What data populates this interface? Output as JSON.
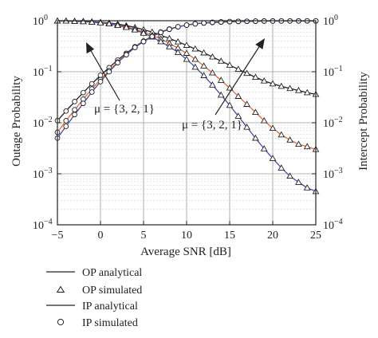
{
  "chart_data": {
    "type": "line",
    "title": "",
    "xlabel": "Average SNR [dB]",
    "ylabel_left": "Outage Probability",
    "ylabel_right": "Intercept Probability",
    "xlim": [
      -5,
      25
    ],
    "ylim": [
      0.0001,
      1
    ],
    "yscale": "log",
    "grid": true,
    "x_ticks": [
      -5,
      0,
      5,
      10,
      15,
      20,
      25
    ],
    "x_tick_labels": [
      "−5",
      "0",
      "5",
      "10",
      "15",
      "20",
      "25"
    ],
    "y_ticks": [
      {
        "value": 1,
        "base": "10",
        "exp": "0"
      },
      {
        "value": 0.1,
        "base": "10",
        "exp": "−1"
      },
      {
        "value": 0.01,
        "base": "10",
        "exp": "−2"
      },
      {
        "value": 0.001,
        "base": "10",
        "exp": "−3"
      },
      {
        "value": 0.0001,
        "base": "10",
        "exp": "−4"
      }
    ],
    "x": [
      -5,
      -4,
      -3,
      -2,
      -1,
      0,
      1,
      2,
      3,
      4,
      5,
      6,
      7,
      8,
      9,
      10,
      11,
      12,
      13,
      14,
      15,
      16,
      17,
      18,
      19,
      20,
      21,
      22,
      23,
      24,
      25
    ],
    "series": [
      {
        "group": "OP",
        "color": "#222222",
        "values": [
          0.99,
          0.985,
          0.98,
          0.97,
          0.955,
          0.935,
          0.9,
          0.86,
          0.8,
          0.74,
          0.67,
          0.6,
          0.52,
          0.45,
          0.385,
          0.33,
          0.28,
          0.235,
          0.195,
          0.162,
          0.135,
          0.112,
          0.093,
          0.078,
          0.066,
          0.058,
          0.052,
          0.047,
          0.043,
          0.039,
          0.036
        ]
      },
      {
        "group": "OP",
        "color": "#e06a3a",
        "values": [
          0.99,
          0.985,
          0.975,
          0.965,
          0.945,
          0.92,
          0.88,
          0.83,
          0.76,
          0.68,
          0.6,
          0.52,
          0.44,
          0.36,
          0.29,
          0.23,
          0.175,
          0.13,
          0.095,
          0.068,
          0.048,
          0.033,
          0.023,
          0.016,
          0.011,
          0.0078,
          0.0058,
          0.0046,
          0.0038,
          0.0034,
          0.003
        ]
      },
      {
        "group": "OP",
        "color": "#4a4aa8",
        "values": [
          0.99,
          0.985,
          0.975,
          0.96,
          0.94,
          0.91,
          0.87,
          0.81,
          0.74,
          0.66,
          0.57,
          0.48,
          0.39,
          0.31,
          0.24,
          0.175,
          0.123,
          0.084,
          0.055,
          0.035,
          0.022,
          0.0135,
          0.0082,
          0.005,
          0.0031,
          0.002,
          0.0013,
          0.0009,
          0.00068,
          0.00053,
          0.00045
        ]
      },
      {
        "group": "IP",
        "color": "#222222",
        "values": [
          0.011,
          0.017,
          0.026,
          0.039,
          0.058,
          0.085,
          0.12,
          0.17,
          0.23,
          0.31,
          0.4,
          0.5,
          0.6,
          0.69,
          0.76,
          0.82,
          0.87,
          0.9,
          0.92,
          0.94,
          0.955,
          0.965,
          0.972,
          0.978,
          0.982,
          0.985,
          0.987,
          0.989,
          0.99,
          0.991,
          0.992
        ]
      },
      {
        "group": "IP",
        "color": "#e06a3a",
        "values": [
          0.0065,
          0.011,
          0.018,
          0.029,
          0.046,
          0.07,
          0.105,
          0.155,
          0.22,
          0.3,
          0.39,
          0.49,
          0.59,
          0.68,
          0.76,
          0.82,
          0.87,
          0.905,
          0.93,
          0.948,
          0.96,
          0.97,
          0.976,
          0.981,
          0.985,
          0.987,
          0.989,
          0.99,
          0.991,
          0.992,
          0.993
        ]
      },
      {
        "group": "IP",
        "color": "#4a4aa8",
        "values": [
          0.005,
          0.0085,
          0.0145,
          0.024,
          0.04,
          0.064,
          0.1,
          0.15,
          0.215,
          0.3,
          0.39,
          0.49,
          0.59,
          0.68,
          0.76,
          0.82,
          0.87,
          0.905,
          0.93,
          0.948,
          0.96,
          0.97,
          0.976,
          0.981,
          0.985,
          0.987,
          0.989,
          0.99,
          0.991,
          0.992,
          0.993
        ]
      }
    ],
    "annotations": [
      {
        "text": "μ = {3, 2, 1}",
        "for": "OP"
      },
      {
        "text": "μ = {3, 2, 1}",
        "for": "IP"
      }
    ],
    "legend": {
      "placement": "bottom",
      "entries": [
        {
          "label": "OP analytical",
          "marker": "line"
        },
        {
          "label": "OP simulated",
          "marker": "triangle"
        },
        {
          "label": "IP analytical",
          "marker": "line"
        },
        {
          "label": "IP simulated",
          "marker": "circle"
        }
      ]
    }
  }
}
